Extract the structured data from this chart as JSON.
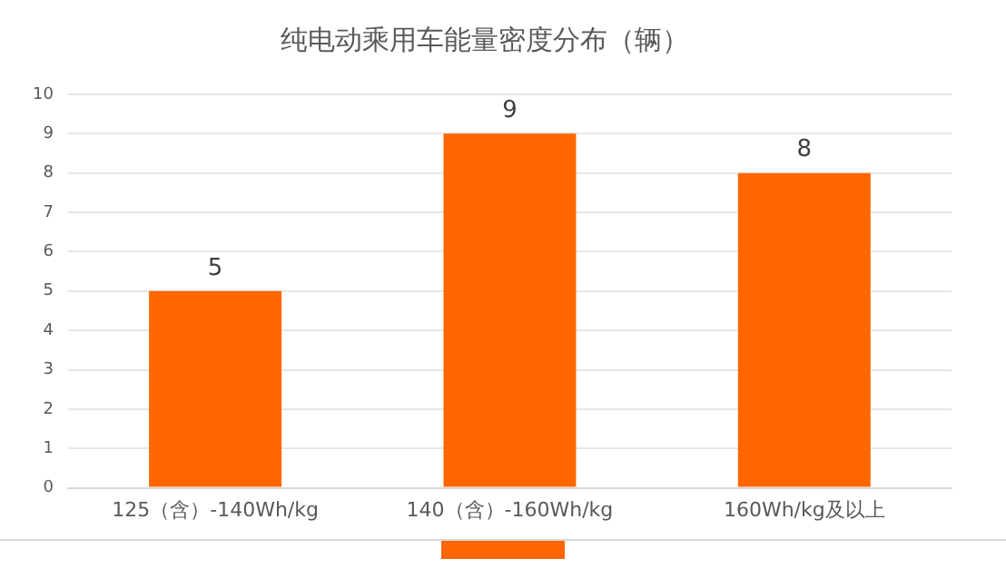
{
  "chart_data": {
    "type": "bar",
    "title": "纯电动乘用车能量密度分布（辆）",
    "categories": [
      "125（含）-140Wh/kg",
      "140（含）-160Wh/kg",
      "160Wh/kg及以上"
    ],
    "values": [
      5,
      9,
      8
    ],
    "color": "#ff6600",
    "ylim": [
      0,
      10
    ],
    "yticks": [
      0,
      1,
      2,
      3,
      4,
      5,
      6,
      7,
      8,
      9,
      10
    ],
    "grid": "y",
    "data_labels": true
  }
}
